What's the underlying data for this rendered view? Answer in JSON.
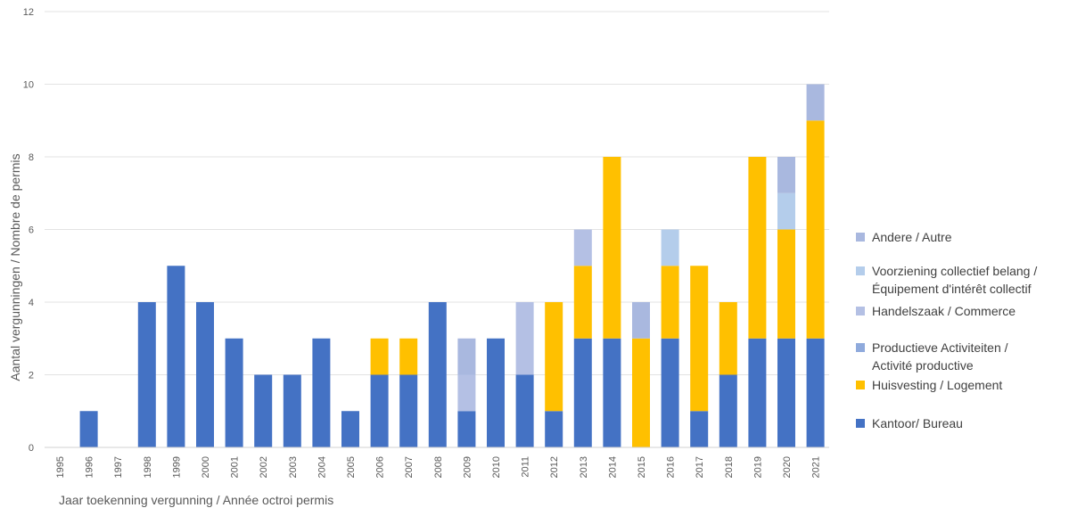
{
  "chart_data": {
    "type": "bar",
    "stacked": true,
    "title": "",
    "xlabel": "Jaar toekenning vergunning / Année octroi permis",
    "ylabel": "Aantal vergunningen / Nombre de permis",
    "ylim": [
      0,
      12
    ],
    "yticks": [
      0,
      2,
      4,
      6,
      8,
      10,
      12
    ],
    "grid": true,
    "legend_position": "right",
    "categories": [
      "1995",
      "1996",
      "1997",
      "1998",
      "1999",
      "2000",
      "2001",
      "2002",
      "2003",
      "2004",
      "2005",
      "2006",
      "2007",
      "2008",
      "2009",
      "2010",
      "2011",
      "2012",
      "2013",
      "2014",
      "2015",
      "2016",
      "2017",
      "2018",
      "2019",
      "2020",
      "2021"
    ],
    "series": [
      {
        "name": "Kantoor/ Bureau",
        "color": "#4472C4",
        "values": [
          0,
          1,
          0,
          4,
          5,
          4,
          3,
          2,
          2,
          3,
          1,
          2,
          2,
          4,
          1,
          3,
          2,
          1,
          3,
          3,
          0,
          3,
          1,
          2,
          3,
          3,
          3
        ]
      },
      {
        "name": "Huisvesting / Logement",
        "color": "#FFC000",
        "values": [
          0,
          0,
          0,
          0,
          0,
          0,
          0,
          0,
          0,
          0,
          0,
          1,
          1,
          0,
          0,
          0,
          0,
          3,
          2,
          5,
          3,
          2,
          4,
          2,
          5,
          3,
          6
        ]
      },
      {
        "name": "Productieve Activiteiten / Activité productive",
        "color": "#8FAADC",
        "values": [
          0,
          0,
          0,
          0,
          0,
          0,
          0,
          0,
          0,
          0,
          0,
          0,
          0,
          0,
          0,
          0,
          0,
          0,
          0,
          0,
          0,
          0,
          0,
          0,
          0,
          0,
          0
        ]
      },
      {
        "name": "Handelszaak / Commerce",
        "color": "#B4C0E4",
        "values": [
          0,
          0,
          0,
          0,
          0,
          0,
          0,
          0,
          0,
          0,
          0,
          0,
          0,
          0,
          1,
          0,
          2,
          0,
          1,
          0,
          0,
          0,
          0,
          0,
          0,
          0,
          0
        ]
      },
      {
        "name": "Voorziening collectief belang / Équipement d'intérêt collectif",
        "color": "#B4CDEB",
        "values": [
          0,
          0,
          0,
          0,
          0,
          0,
          0,
          0,
          0,
          0,
          0,
          0,
          0,
          0,
          0,
          0,
          0,
          0,
          0,
          0,
          0,
          1,
          0,
          0,
          0,
          1,
          0
        ]
      },
      {
        "name": "Andere / Autre",
        "color": "#A9B8DF",
        "values": [
          0,
          0,
          0,
          0,
          0,
          0,
          0,
          0,
          0,
          0,
          0,
          0,
          0,
          0,
          1,
          0,
          0,
          0,
          0,
          0,
          1,
          0,
          0,
          0,
          0,
          1,
          1
        ]
      }
    ]
  },
  "legend": [
    {
      "label": "Andere / Autre",
      "color": "#A9B8DF"
    },
    {
      "label": "Voorziening collectief belang /\nÉquipement d'intérêt collectif",
      "color": "#B4CDEB"
    },
    {
      "label": "Handelszaak / Commerce",
      "color": "#B4C0E4"
    },
    {
      "label": "Productieve Activiteiten /\nActivité productive",
      "color": "#8FAADC"
    },
    {
      "label": "Huisvesting / Logement",
      "color": "#FFC000"
    },
    {
      "label": "Kantoor/ Bureau",
      "color": "#4472C4"
    }
  ]
}
